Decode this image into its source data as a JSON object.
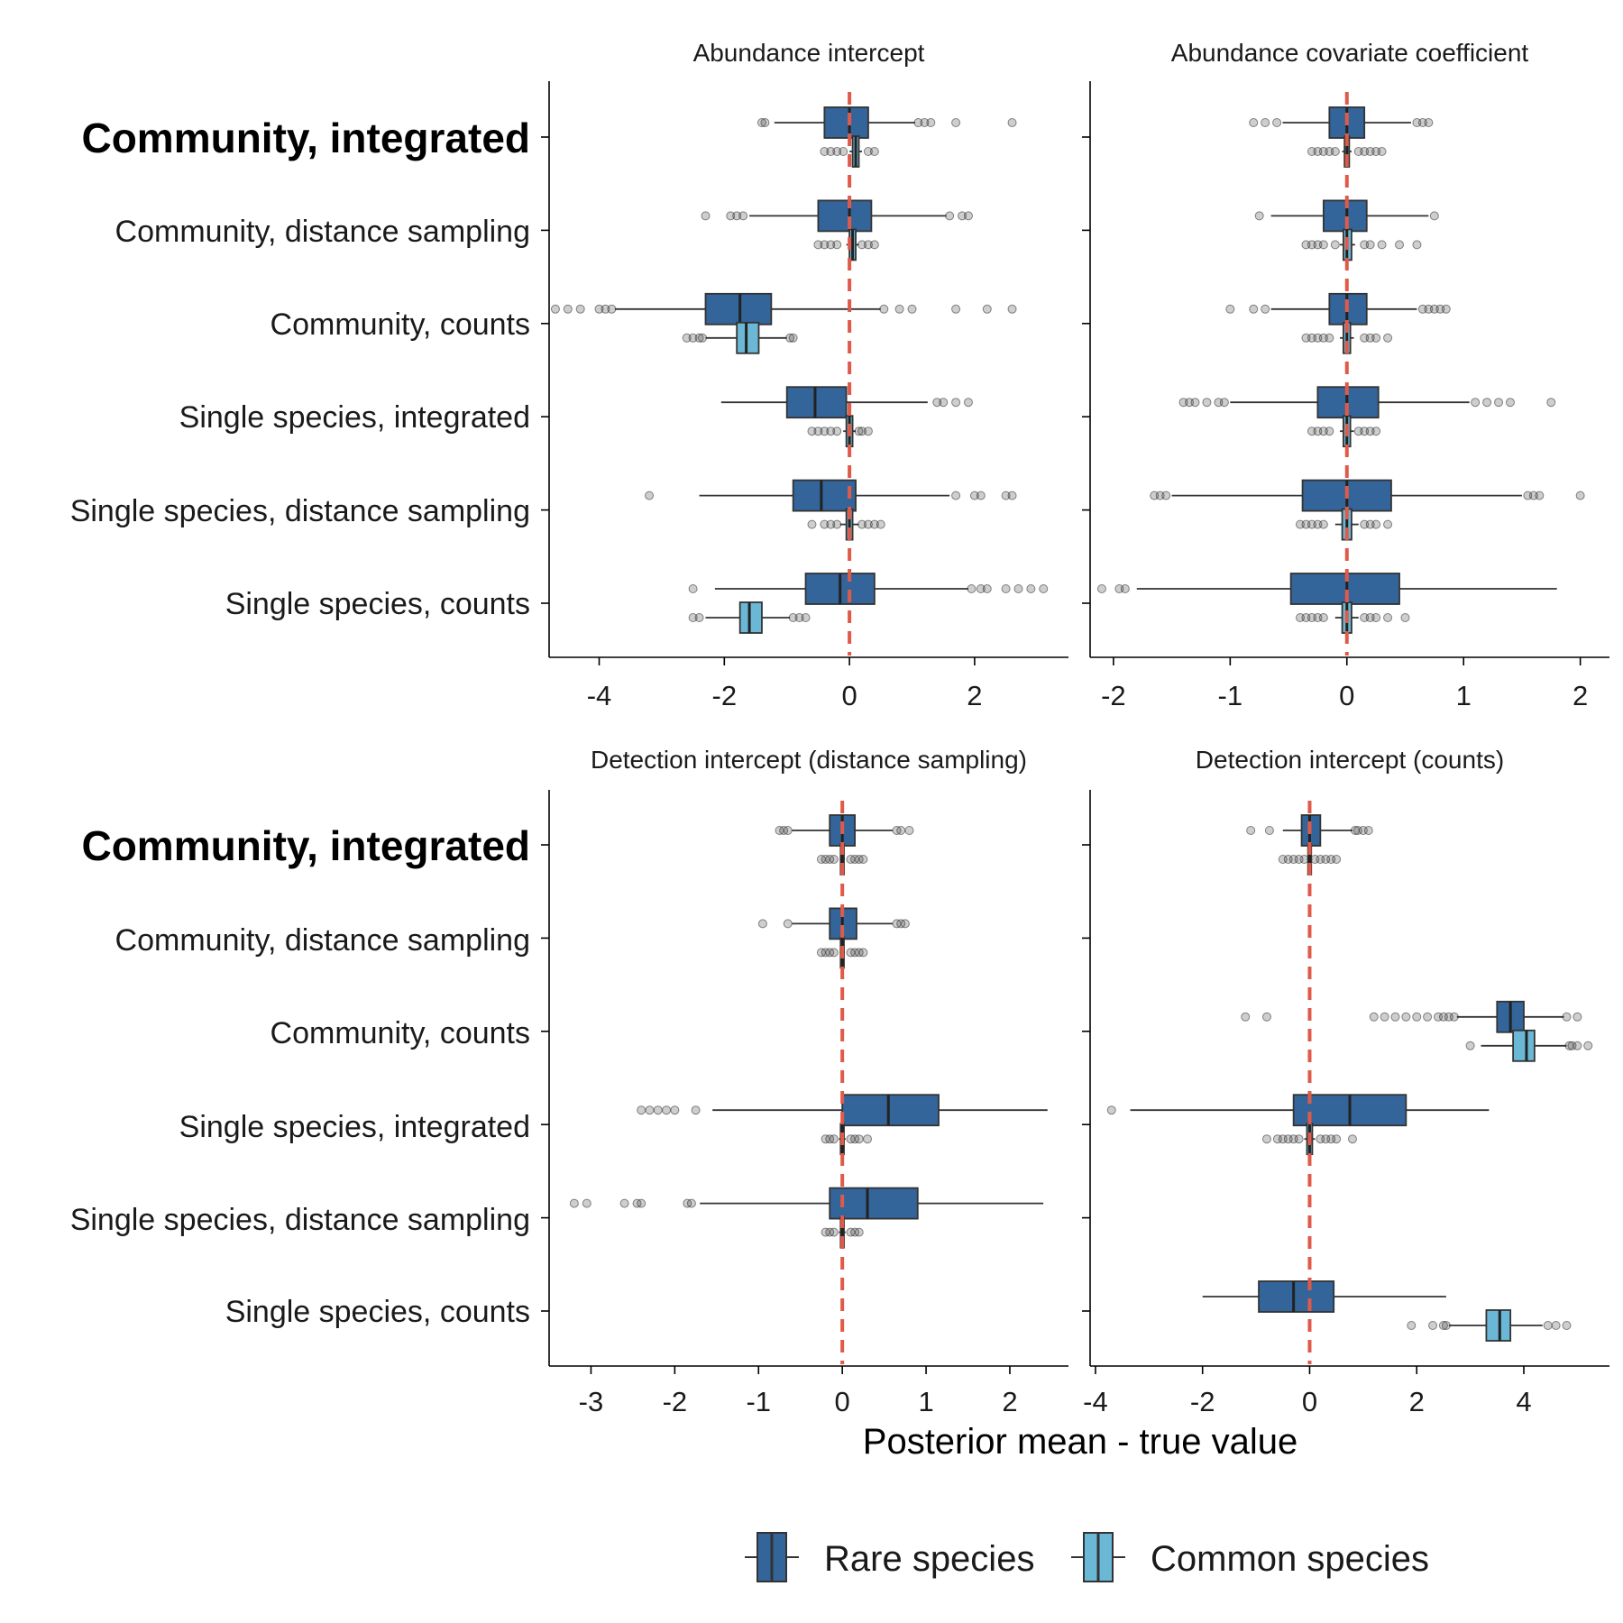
{
  "chart_data": {
    "type": "boxplot",
    "x_axis_title": "Posterior mean - true value",
    "rows": [
      "Community, integrated",
      "Community, distance sampling",
      "Community, counts",
      "Single species, integrated",
      "Single species, distance sampling",
      "Single species, counts"
    ],
    "bold_row": "Community, integrated",
    "legend": [
      {
        "name": "Rare species",
        "color": "#33659a"
      },
      {
        "name": "Common species",
        "color": "#6ab8d5"
      }
    ],
    "reference_line": {
      "x": 0,
      "color": "#e05a4a",
      "style": "dashed"
    },
    "panels": [
      {
        "title": "Abundance intercept",
        "xlim": [
          -4.8,
          3.5
        ],
        "xticks": [
          -4,
          -2,
          0,
          2
        ],
        "boxes": [
          {
            "row": 0,
            "rare": {
              "q1": -0.4,
              "median": 0.0,
              "q3": 0.3,
              "whisker_low": -1.2,
              "whisker_high": 1.05,
              "outliers": [
                -1.4,
                -1.35,
                1.1,
                1.2,
                1.3,
                1.7,
                2.6
              ]
            },
            "common": {
              "q1": 0.05,
              "median": 0.1,
              "q3": 0.15,
              "whisker_low": 0.0,
              "whisker_high": 0.2,
              "outliers": [
                -0.4,
                -0.3,
                -0.2,
                -0.1,
                0.3,
                0.4
              ]
            }
          },
          {
            "row": 1,
            "rare": {
              "q1": -0.5,
              "median": 0.0,
              "q3": 0.35,
              "whisker_low": -1.6,
              "whisker_high": 1.55,
              "outliers": [
                -2.3,
                -1.9,
                -1.8,
                -1.7,
                1.6,
                1.8,
                1.9
              ]
            },
            "common": {
              "q1": 0.0,
              "median": 0.05,
              "q3": 0.1,
              "whisker_low": -0.05,
              "whisker_high": 0.15,
              "outliers": [
                -0.5,
                -0.4,
                -0.3,
                -0.2,
                0.2,
                0.3,
                0.4
              ]
            }
          },
          {
            "row": 2,
            "rare": {
              "q1": -2.3,
              "median": -1.75,
              "q3": -1.25,
              "whisker_low": -3.75,
              "whisker_high": 0.5,
              "outliers": [
                -4.7,
                -4.5,
                -4.3,
                -4.0,
                -3.9,
                -3.8,
                0.55,
                0.8,
                1.0,
                1.7,
                2.2,
                2.6
              ]
            },
            "common": {
              "q1": -1.8,
              "median": -1.65,
              "q3": -1.45,
              "whisker_low": -2.3,
              "whisker_high": -1.0,
              "outliers": [
                -2.6,
                -2.5,
                -2.4,
                -2.35,
                -0.95,
                -0.9
              ]
            }
          },
          {
            "row": 3,
            "rare": {
              "q1": -1.0,
              "median": -0.55,
              "q3": -0.05,
              "whisker_low": -2.05,
              "whisker_high": 1.25,
              "outliers": [
                1.4,
                1.5,
                1.7,
                1.9
              ]
            },
            "common": {
              "q1": -0.05,
              "median": 0.0,
              "q3": 0.05,
              "whisker_low": -0.1,
              "whisker_high": 0.1,
              "outliers": [
                -0.6,
                -0.5,
                -0.4,
                -0.3,
                -0.2,
                0.15,
                0.2,
                0.3
              ]
            }
          },
          {
            "row": 4,
            "rare": {
              "q1": -0.9,
              "median": -0.45,
              "q3": 0.1,
              "whisker_low": -2.4,
              "whisker_high": 1.6,
              "outliers": [
                -3.2,
                1.7,
                2.0,
                2.1,
                2.5,
                2.6
              ]
            },
            "common": {
              "q1": -0.05,
              "median": 0.0,
              "q3": 0.05,
              "whisker_low": -0.15,
              "whisker_high": 0.15,
              "outliers": [
                -0.6,
                -0.4,
                -0.3,
                -0.2,
                0.2,
                0.3,
                0.4,
                0.5
              ]
            }
          },
          {
            "row": 5,
            "rare": {
              "q1": -0.7,
              "median": -0.15,
              "q3": 0.4,
              "whisker_low": -2.15,
              "whisker_high": 1.9,
              "outliers": [
                -2.5,
                1.95,
                2.1,
                2.2,
                2.5,
                2.7,
                2.9,
                3.1
              ]
            },
            "common": {
              "q1": -1.75,
              "median": -1.6,
              "q3": -1.4,
              "whisker_low": -2.3,
              "whisker_high": -0.95,
              "outliers": [
                -2.5,
                -2.4,
                -0.9,
                -0.8,
                -0.7
              ]
            }
          }
        ]
      },
      {
        "title": "Abundance covariate coefficient",
        "xlim": [
          -2.2,
          2.25
        ],
        "xticks": [
          -2,
          -1,
          0,
          1,
          2
        ],
        "boxes": [
          {
            "row": 0,
            "rare": {
              "q1": -0.15,
              "median": 0.0,
              "q3": 0.15,
              "whisker_low": -0.55,
              "whisker_high": 0.55,
              "outliers": [
                -0.8,
                -0.7,
                -0.6,
                0.6,
                0.65,
                0.7
              ]
            },
            "common": {
              "q1": -0.02,
              "median": 0.0,
              "q3": 0.02,
              "whisker_low": -0.04,
              "whisker_high": 0.04,
              "outliers": [
                -0.3,
                -0.25,
                -0.2,
                -0.15,
                -0.1,
                0.1,
                0.15,
                0.2,
                0.25,
                0.3
              ]
            }
          },
          {
            "row": 1,
            "rare": {
              "q1": -0.2,
              "median": 0.0,
              "q3": 0.17,
              "whisker_low": -0.65,
              "whisker_high": 0.7,
              "outliers": [
                -0.75,
                0.75
              ]
            },
            "common": {
              "q1": -0.03,
              "median": 0.0,
              "q3": 0.04,
              "whisker_low": -0.06,
              "whisker_high": 0.07,
              "outliers": [
                -0.35,
                -0.3,
                -0.25,
                -0.2,
                -0.1,
                0.15,
                0.2,
                0.3,
                0.45,
                0.6
              ]
            }
          },
          {
            "row": 2,
            "rare": {
              "q1": -0.15,
              "median": 0.0,
              "q3": 0.17,
              "whisker_low": -0.65,
              "whisker_high": 0.6,
              "outliers": [
                -1.0,
                -0.8,
                -0.7,
                0.65,
                0.7,
                0.75,
                0.8,
                0.85
              ]
            },
            "common": {
              "q1": -0.03,
              "median": 0.0,
              "q3": 0.03,
              "whisker_low": -0.06,
              "whisker_high": 0.06,
              "outliers": [
                -0.35,
                -0.3,
                -0.25,
                -0.2,
                -0.15,
                0.15,
                0.2,
                0.25,
                0.35
              ]
            }
          },
          {
            "row": 3,
            "rare": {
              "q1": -0.25,
              "median": 0.0,
              "q3": 0.27,
              "whisker_low": -1.0,
              "whisker_high": 1.05,
              "outliers": [
                -1.4,
                -1.35,
                -1.3,
                -1.2,
                -1.1,
                -1.05,
                1.1,
                1.2,
                1.3,
                1.4,
                1.75
              ]
            },
            "common": {
              "q1": -0.03,
              "median": 0.0,
              "q3": 0.03,
              "whisker_low": -0.06,
              "whisker_high": 0.06,
              "outliers": [
                -0.3,
                -0.25,
                -0.2,
                -0.15,
                0.1,
                0.15,
                0.2,
                0.25
              ]
            }
          },
          {
            "row": 4,
            "rare": {
              "q1": -0.38,
              "median": 0.0,
              "q3": 0.38,
              "whisker_low": -1.5,
              "whisker_high": 1.5,
              "outliers": [
                -1.65,
                -1.6,
                -1.55,
                1.55,
                1.6,
                1.65,
                2.0
              ]
            },
            "common": {
              "q1": -0.04,
              "median": 0.0,
              "q3": 0.04,
              "whisker_low": -0.1,
              "whisker_high": 0.1,
              "outliers": [
                -0.4,
                -0.35,
                -0.3,
                -0.25,
                -0.2,
                0.15,
                0.2,
                0.25,
                0.35
              ]
            }
          },
          {
            "row": 5,
            "rare": {
              "q1": -0.48,
              "median": 0.0,
              "q3": 0.45,
              "whisker_low": -1.8,
              "whisker_high": 1.8,
              "outliers": [
                -2.1,
                -1.95,
                -1.9
              ]
            },
            "common": {
              "q1": -0.04,
              "median": 0.0,
              "q3": 0.04,
              "whisker_low": -0.1,
              "whisker_high": 0.1,
              "outliers": [
                -0.4,
                -0.35,
                -0.3,
                -0.25,
                -0.2,
                0.15,
                0.2,
                0.25,
                0.35,
                0.5
              ]
            }
          }
        ]
      },
      {
        "title": "Detection intercept (distance sampling)",
        "xlim": [
          -3.5,
          2.7
        ],
        "xticks": [
          -3,
          -2,
          -1,
          0,
          1,
          2
        ],
        "boxes": [
          {
            "row": 0,
            "rare": {
              "q1": -0.15,
              "median": 0.0,
              "q3": 0.15,
              "whisker_low": -0.6,
              "whisker_high": 0.6,
              "outliers": [
                -0.75,
                -0.7,
                -0.65,
                0.65,
                0.7,
                0.8
              ]
            },
            "common": {
              "q1": -0.02,
              "median": 0.0,
              "q3": 0.02,
              "whisker_low": -0.03,
              "whisker_high": 0.03,
              "outliers": [
                -0.25,
                -0.2,
                -0.15,
                -0.1,
                0.1,
                0.15,
                0.2,
                0.25
              ]
            }
          },
          {
            "row": 1,
            "rare": {
              "q1": -0.15,
              "median": 0.0,
              "q3": 0.17,
              "whisker_low": -0.6,
              "whisker_high": 0.6,
              "outliers": [
                -0.95,
                -0.65,
                0.65,
                0.7,
                0.75
              ]
            },
            "common": {
              "q1": -0.02,
              "median": 0.0,
              "q3": 0.02,
              "whisker_low": -0.03,
              "whisker_high": 0.03,
              "outliers": [
                -0.25,
                -0.2,
                -0.15,
                -0.1,
                0.1,
                0.15,
                0.2,
                0.25
              ]
            }
          },
          {
            "row": 3,
            "rare": {
              "q1": 0.0,
              "median": 0.55,
              "q3": 1.15,
              "whisker_low": -1.55,
              "whisker_high": 2.45,
              "outliers": [
                -2.4,
                -2.3,
                -2.2,
                -2.1,
                -2.0,
                -1.75
              ]
            },
            "common": {
              "q1": -0.02,
              "median": 0.0,
              "q3": 0.02,
              "whisker_low": -0.04,
              "whisker_high": 0.04,
              "outliers": [
                -0.2,
                -0.15,
                -0.1,
                0.1,
                0.15,
                0.2,
                0.3
              ]
            }
          },
          {
            "row": 4,
            "rare": {
              "q1": -0.15,
              "median": 0.3,
              "q3": 0.9,
              "whisker_low": -1.7,
              "whisker_high": 2.4,
              "outliers": [
                -3.2,
                -3.05,
                -2.6,
                -2.45,
                -2.4,
                -1.85,
                -1.8
              ]
            },
            "common": {
              "q1": -0.02,
              "median": 0.0,
              "q3": 0.02,
              "whisker_low": -0.04,
              "whisker_high": 0.04,
              "outliers": [
                -0.2,
                -0.15,
                -0.1,
                0.1,
                0.15,
                0.2
              ]
            }
          }
        ]
      },
      {
        "title": "Detection intercept (counts)",
        "xlim": [
          -4.1,
          5.6
        ],
        "xticks": [
          -4,
          -2,
          0,
          2,
          4
        ],
        "boxes": [
          {
            "row": 0,
            "rare": {
              "q1": -0.15,
              "median": 0.0,
              "q3": 0.2,
              "whisker_low": -0.5,
              "whisker_high": 0.8,
              "outliers": [
                -1.1,
                -0.75,
                0.85,
                0.9,
                1.0,
                1.1
              ]
            },
            "common": {
              "q1": -0.03,
              "median": 0.0,
              "q3": 0.03,
              "whisker_low": -0.05,
              "whisker_high": 0.05,
              "outliers": [
                -0.5,
                -0.4,
                -0.3,
                -0.2,
                -0.1,
                0.1,
                0.2,
                0.3,
                0.4,
                0.5
              ]
            }
          },
          {
            "row": 2,
            "rare": {
              "q1": 3.5,
              "median": 3.75,
              "q3": 4.0,
              "whisker_low": 2.75,
              "whisker_high": 4.75,
              "outliers": [
                -1.2,
                -0.8,
                1.2,
                1.4,
                1.6,
                1.8,
                2.0,
                2.2,
                2.4,
                2.5,
                2.6,
                2.7,
                4.8,
                5.0
              ]
            },
            "common": {
              "q1": 3.8,
              "median": 4.05,
              "q3": 4.2,
              "whisker_low": 3.2,
              "whisker_high": 4.8,
              "outliers": [
                3.0,
                4.85,
                4.9,
                5.0,
                5.2
              ]
            }
          },
          {
            "row": 3,
            "rare": {
              "q1": -0.3,
              "median": 0.75,
              "q3": 1.8,
              "whisker_low": -3.35,
              "whisker_high": 3.35,
              "outliers": [
                -3.7
              ]
            },
            "common": {
              "q1": -0.05,
              "median": 0.0,
              "q3": 0.05,
              "whisker_low": -0.1,
              "whisker_high": 0.1,
              "outliers": [
                -0.8,
                -0.6,
                -0.5,
                -0.4,
                -0.3,
                -0.2,
                0.2,
                0.3,
                0.4,
                0.5,
                0.8
              ]
            }
          },
          {
            "row": 5,
            "rare": {
              "q1": -0.95,
              "median": -0.3,
              "q3": 0.45,
              "whisker_low": -2.0,
              "whisker_high": 2.55,
              "outliers": []
            },
            "common": {
              "q1": 3.3,
              "median": 3.55,
              "q3": 3.75,
              "whisker_low": 2.6,
              "whisker_high": 4.35,
              "outliers": [
                1.9,
                2.3,
                2.5,
                2.55,
                4.45,
                4.6,
                4.8
              ]
            }
          }
        ]
      }
    ]
  }
}
